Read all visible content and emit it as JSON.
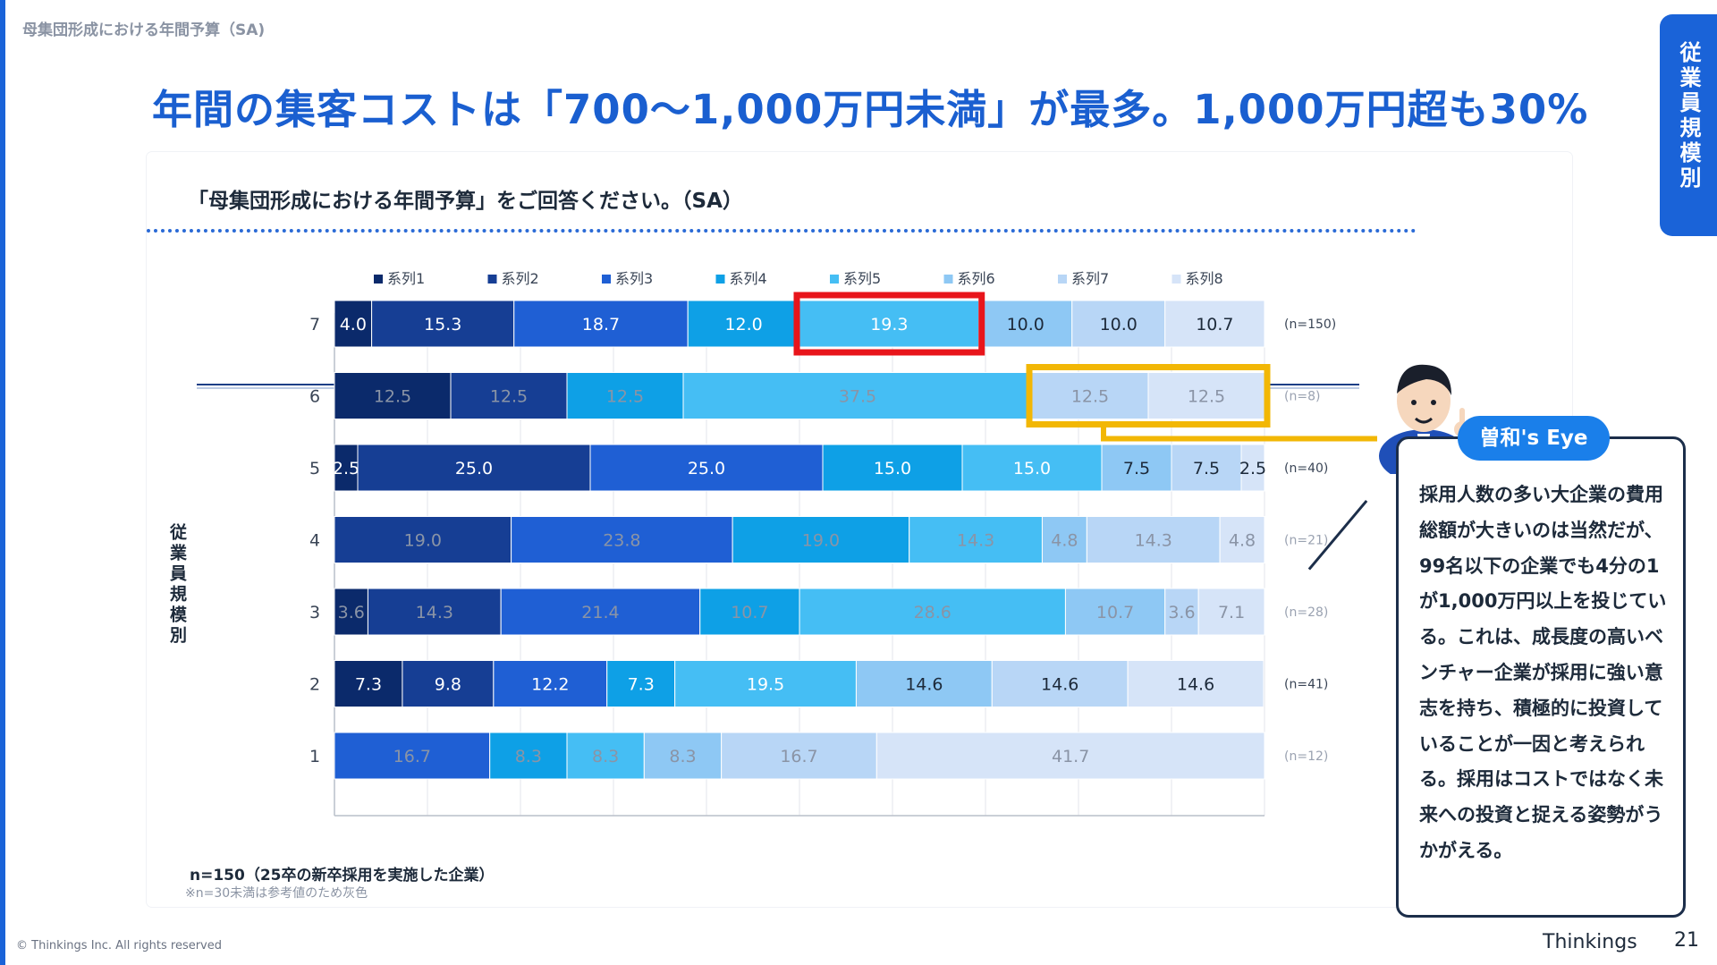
{
  "breadcrumb": "母集団形成における年間予算（SA)",
  "headline": "年間の集客コストは「700〜1,000万円未満」が最多。1,000万円超も30%",
  "side_tab": "従業員規模別",
  "question": "「母集団形成における年間予算」をご回答ください。（SA）",
  "vertical_axis_label": "従業員規模別",
  "footnote": "n=150（25卒の新卒採用を実施した企業）",
  "footnote_note": "※n=30未満は参考値のため灰色",
  "copyright": "© Thinkings Inc. All rights reserved",
  "brand": "Thinkings",
  "page_number": "21",
  "eye": {
    "badge": "曽和's Eye",
    "text": "採用人数の多い大企業の費用総額が大きいのは当然だが、99名以下の企業でも4分の1が1,000万円以上を投じている。これは、成長度の高いベンチャー企業が採用に強い意志を持ち、積極的に投資していることが一因と考えられる。採用はコストではなく未来への投資と捉える姿勢がうかがえる。"
  },
  "colors": {
    "series": [
      "#0b2a6b",
      "#163e94",
      "#1f5fd4",
      "#0ea0e6",
      "#45bef4",
      "#8ec8f4",
      "#b8d6f6",
      "#d6e4f8"
    ],
    "highlight_red": "#e8151b",
    "highlight_yellow": "#f2b705"
  },
  "chart_data": {
    "type": "bar",
    "orientation": "horizontal",
    "stacked": true,
    "xlim": [
      0,
      100
    ],
    "legend_position": "top",
    "categories": [
      "7",
      "6",
      "5",
      "4",
      "3",
      "2",
      "1"
    ],
    "n_labels": [
      "(n=150)",
      "(n=8)",
      "(n=40)",
      "(n=21)",
      "(n=28)",
      "(n=41)",
      "(n=12)"
    ],
    "reference_rows": [
      false,
      true,
      false,
      true,
      true,
      false,
      true
    ],
    "series": [
      {
        "name": "系列1",
        "values": [
          4.0,
          12.5,
          2.5,
          0,
          3.6,
          7.3,
          0
        ]
      },
      {
        "name": "系列2",
        "values": [
          15.3,
          12.5,
          25.0,
          19.0,
          14.3,
          9.8,
          0
        ]
      },
      {
        "name": "系列3",
        "values": [
          18.7,
          0,
          25.0,
          23.8,
          21.4,
          12.2,
          16.7
        ]
      },
      {
        "name": "系列4",
        "values": [
          12.0,
          12.5,
          15.0,
          19.0,
          10.7,
          7.3,
          8.3
        ]
      },
      {
        "name": "系列5",
        "values": [
          19.3,
          37.5,
          15.0,
          14.3,
          28.6,
          19.5,
          8.3
        ]
      },
      {
        "name": "系列6",
        "values": [
          10.0,
          0,
          7.5,
          4.8,
          10.7,
          14.6,
          8.3
        ]
      },
      {
        "name": "系列7",
        "values": [
          10.0,
          12.5,
          7.5,
          14.3,
          3.6,
          14.6,
          16.7
        ]
      },
      {
        "name": "系列8",
        "values": [
          10.7,
          12.5,
          2.5,
          4.8,
          7.1,
          14.6,
          41.7
        ]
      }
    ],
    "label_texts": [
      [
        "4.0",
        "15.3",
        "18.7",
        "12.0",
        "19.3",
        "10.0",
        "10.0",
        "10.7"
      ],
      [
        "12.5",
        "12.5",
        "",
        "12.5",
        "37.5",
        "",
        "12.5",
        "12.5"
      ],
      [
        "2.5",
        "25.0",
        "25.0",
        "15.0",
        "15.0",
        "7.5",
        "7.5",
        "2.5"
      ],
      [
        "",
        "19.0",
        "23.8",
        "19.0",
        "14.3",
        "4.8",
        "14.3",
        "4.8"
      ],
      [
        "3.6",
        "14.3",
        "21.4",
        "10.7",
        "28.6",
        "10.7",
        "3.6",
        "7.1"
      ],
      [
        "7.3",
        "9.8",
        "12.2",
        "7.3",
        "19.5",
        "14.6",
        "14.6",
        "14.6"
      ],
      [
        "",
        "",
        "16.7",
        "8.3",
        "8.3",
        "8.3",
        "16.7",
        "41.7"
      ]
    ],
    "highlights": [
      {
        "row": 0,
        "series": [
          4
        ],
        "color": "red"
      },
      {
        "row": 1,
        "series": [
          6,
          7
        ],
        "color": "yellow"
      }
    ]
  }
}
